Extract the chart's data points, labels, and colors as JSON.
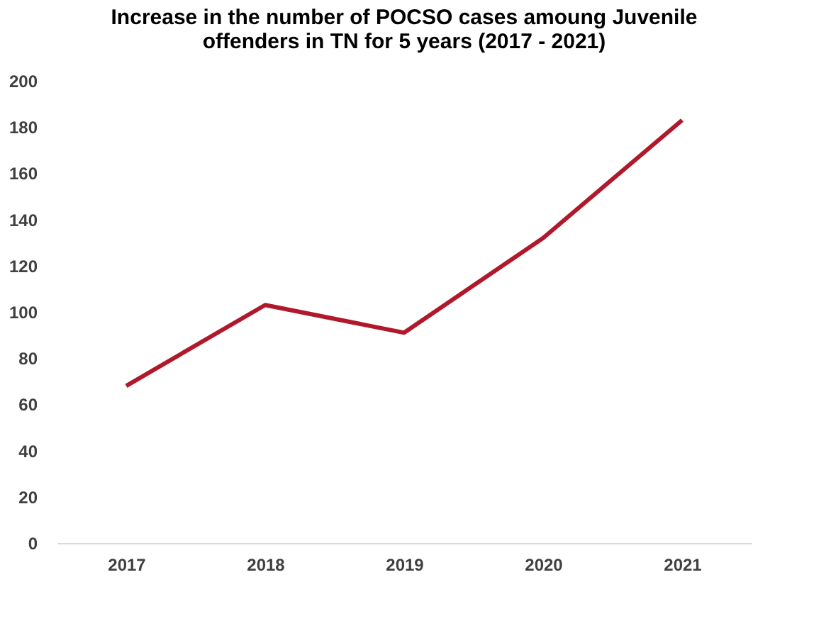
{
  "chart_data": {
    "type": "line",
    "title": [
      "Increase in the number of POCSO  cases amoung Juvenile",
      "offenders in TN for 5 years (2017 - 2021)"
    ],
    "categories": [
      "2017",
      "2018",
      "2019",
      "2020",
      "2021"
    ],
    "series": [
      {
        "color": "#b0192b",
        "values": [
          68,
          103,
          91,
          132,
          183
        ]
      }
    ],
    "ylim": [
      0,
      200
    ],
    "yticks": [
      0,
      20,
      40,
      60,
      80,
      100,
      120,
      140,
      160,
      180,
      200
    ],
    "grid": false,
    "legend": false,
    "marker": "none",
    "line_style": "solid"
  }
}
